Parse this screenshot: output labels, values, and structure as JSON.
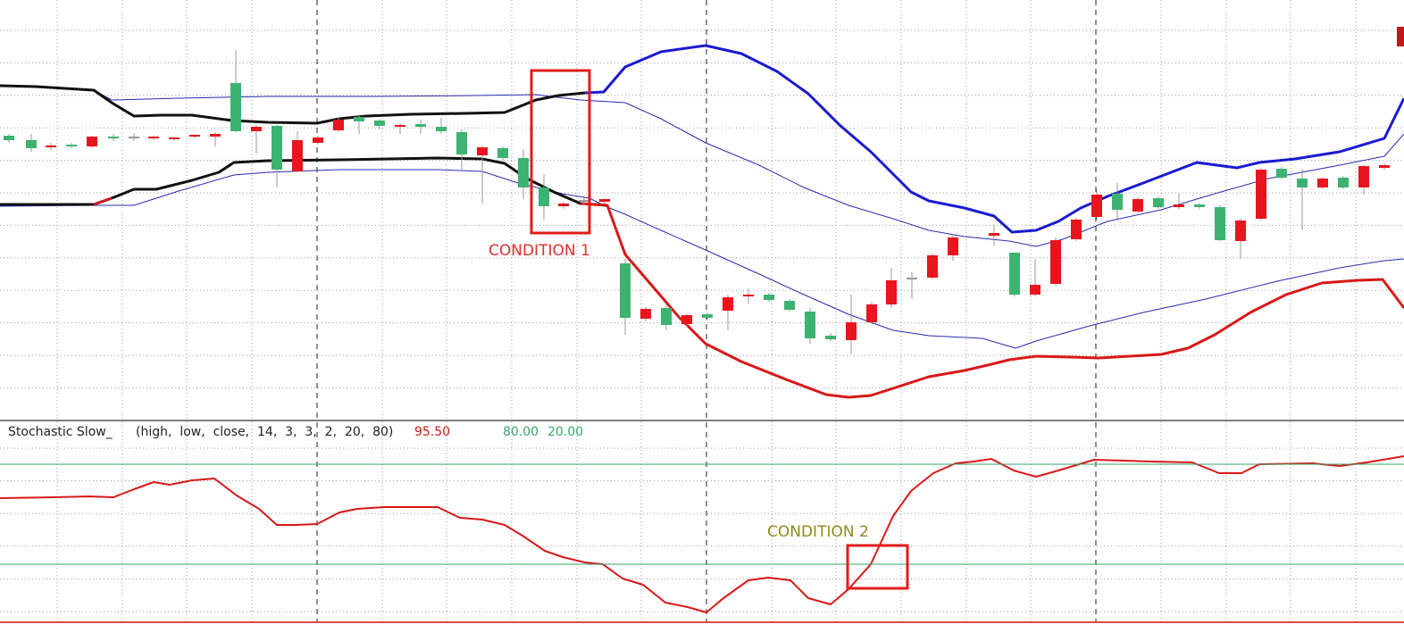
{
  "indicator": {
    "name": "Stochastic Slow_",
    "params": "(high,  low,  close,  14,  3,  3,  2,  20,  80)",
    "value": "95.50",
    "upper_level": "80.00",
    "lower_level": "20.00"
  },
  "annotations": {
    "condition_1": "CONDITION 1",
    "condition_2": "CONDITION 2"
  }
}
